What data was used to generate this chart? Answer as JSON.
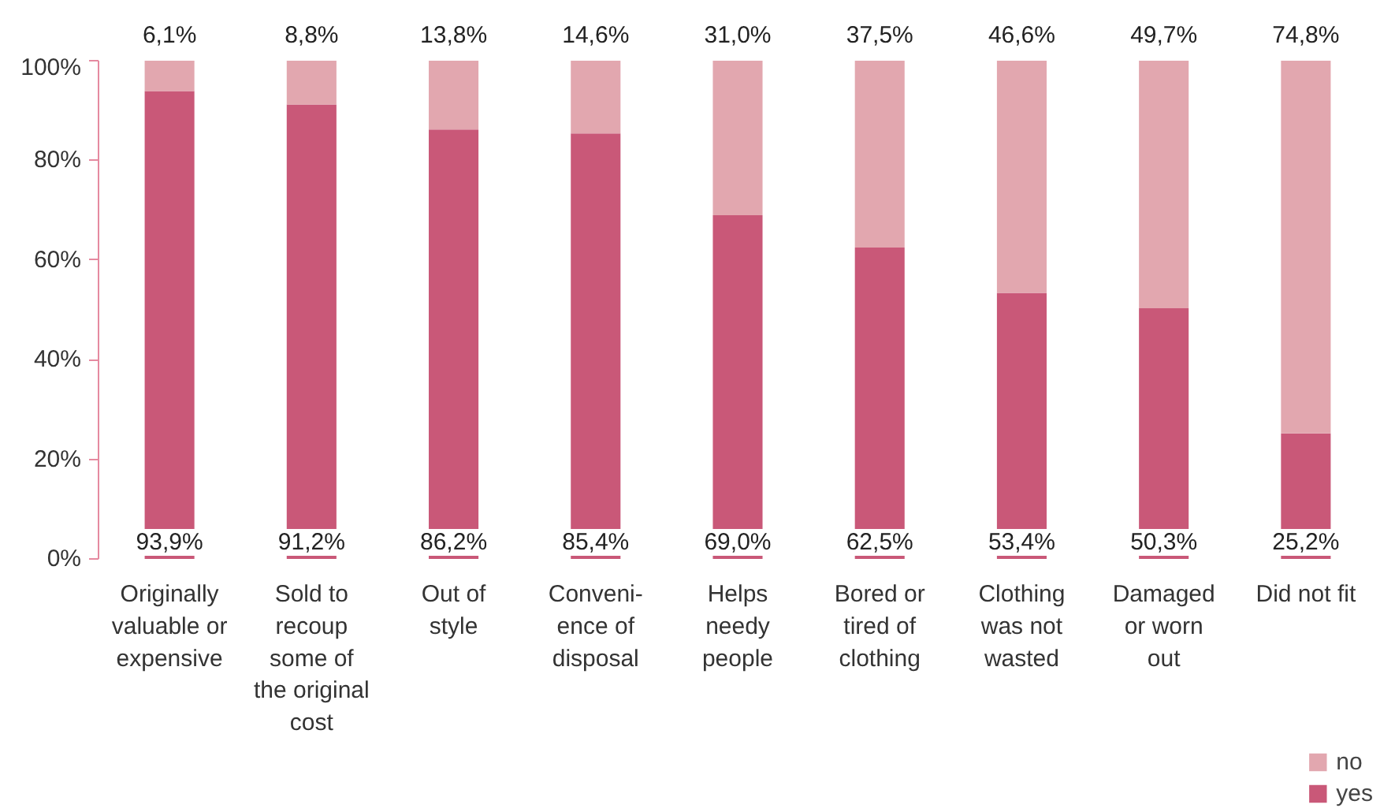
{
  "chart_data": {
    "type": "bar",
    "stacked": true,
    "categories": [
      "Originally\nvaluable or\nexpensive",
      "Sold to\nrecoup\nsome of\nthe original\ncost",
      "Out of\nstyle",
      "Conveni-\nence of\ndisposal",
      "Helps\nneedy\npeople",
      "Bored or\ntired of\nclothing",
      "Clothing\nwas not\nwasted",
      "Damaged\nor worn\nout",
      "Did not fit"
    ],
    "series": [
      {
        "name": "yes",
        "color": "#c95878",
        "values": [
          93.9,
          91.2,
          86.2,
          85.4,
          69.0,
          62.5,
          53.4,
          50.3,
          25.2
        ],
        "value_labels": [
          "93,9%",
          "91,2%",
          "86,2%",
          "85,4%",
          "69,0%",
          "62,5%",
          "53,4%",
          "50,3%",
          "25,2%"
        ]
      },
      {
        "name": "no",
        "color": "#e2a7af",
        "values": [
          6.1,
          8.8,
          13.8,
          14.6,
          31.0,
          37.5,
          46.6,
          49.7,
          74.8
        ],
        "value_labels": [
          "6,1%",
          "8,8%",
          "13,8%",
          "14,6%",
          "31,0%",
          "37,5%",
          "46,6%",
          "49,7%",
          "74,8%"
        ]
      }
    ],
    "ylim": [
      0,
      100
    ],
    "yticks": [
      {
        "value": 0,
        "label": "0%"
      },
      {
        "value": 20,
        "label": "20%"
      },
      {
        "value": 40,
        "label": "40%"
      },
      {
        "value": 60,
        "label": "60%"
      },
      {
        "value": 80,
        "label": "80%"
      },
      {
        "value": 100,
        "label": "100%"
      }
    ],
    "grid": false,
    "legend": "bottom right"
  }
}
